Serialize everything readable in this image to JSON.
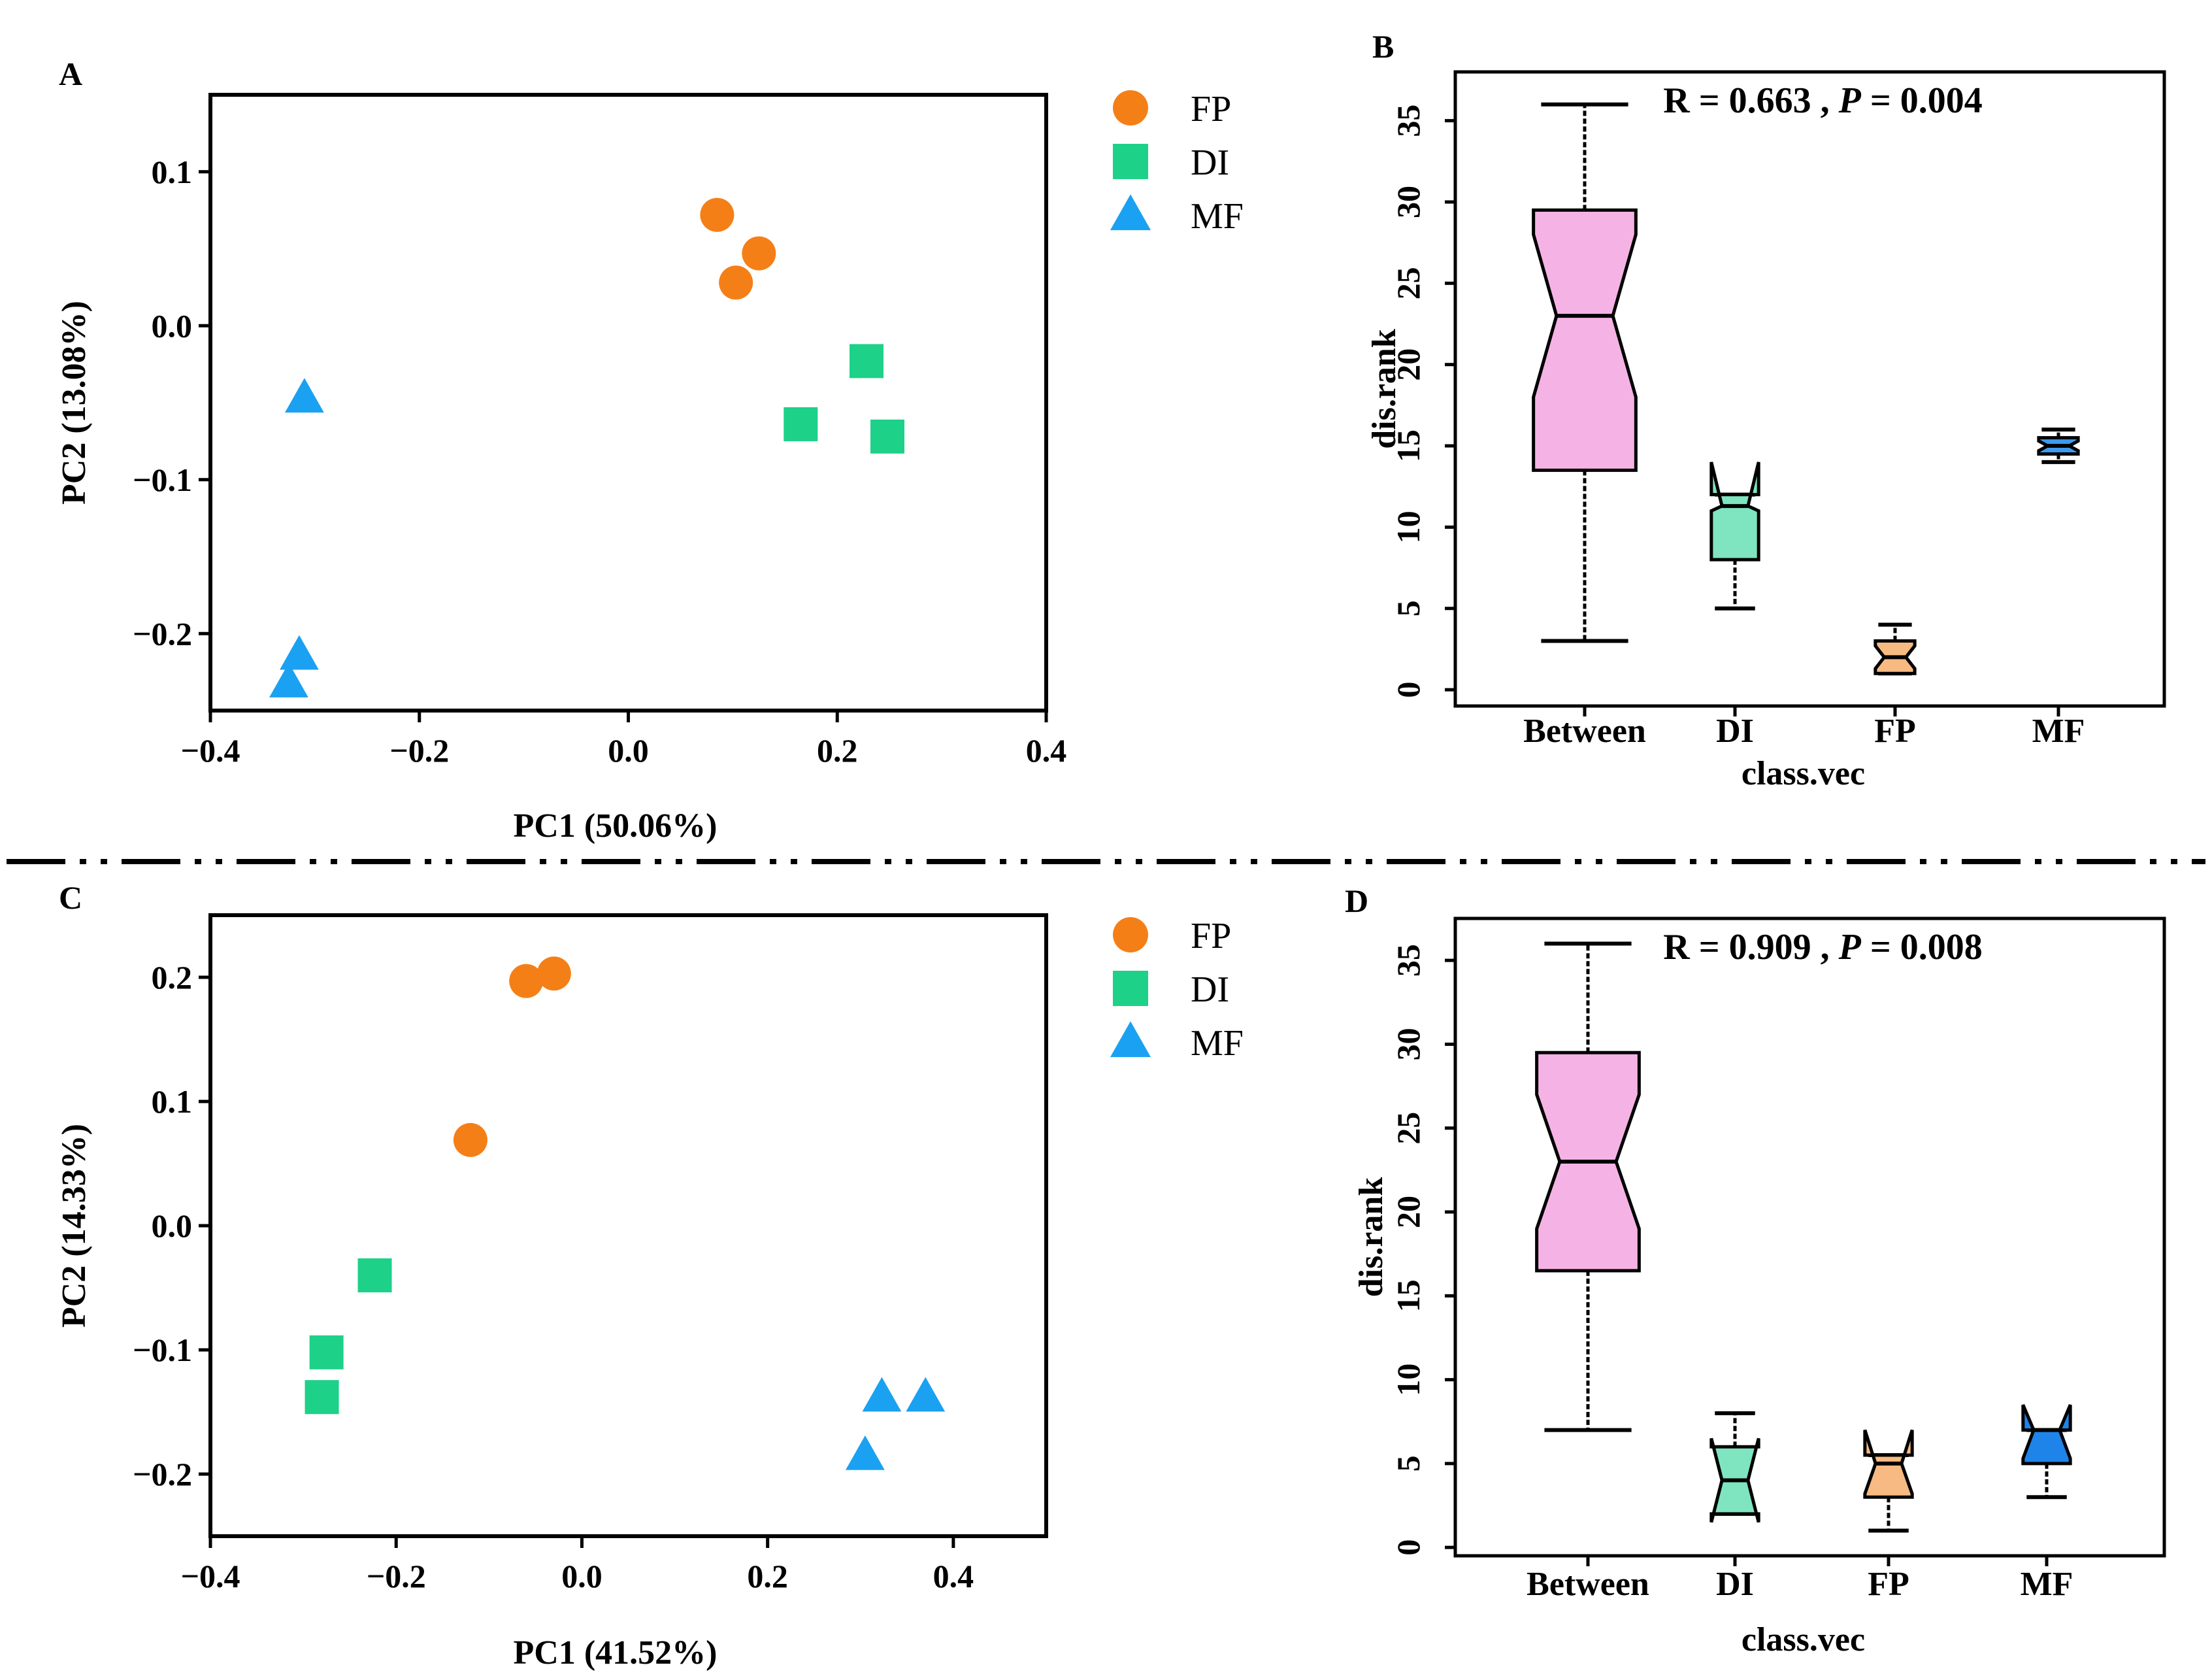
{
  "colors": {
    "FP": "#F57F17",
    "DI": "#1DD188",
    "MF": "#1BA1F2",
    "box_between": "#F5B3E5",
    "box_DI": "#7EE5C0",
    "box_FP": "#F7BA82",
    "box_MF_B": "#3E9AEE",
    "box_MF_D": "#1F84EA"
  },
  "divider": "dash-dot-dot line",
  "chart_data": [
    {
      "panel": "A",
      "type": "scatter",
      "xlabel": "PC1 (50.06%)",
      "ylabel": "PC2  (13.08%)",
      "xlim": [
        -0.4,
        0.4
      ],
      "ylim": [
        -0.25,
        0.15
      ],
      "xticks": [
        -0.4,
        -0.2,
        0.0,
        0.2,
        0.4
      ],
      "xticklabels": [
        "−0.4",
        "−0.2",
        "0.0",
        "0.2",
        "0.4"
      ],
      "yticks": [
        0.1,
        0.0,
        -0.1,
        -0.2
      ],
      "yticklabels": [
        "0.1",
        "0.0",
        "−0.1",
        "−0.2"
      ],
      "legend": [
        {
          "name": "FP",
          "marker": "circle"
        },
        {
          "name": "DI",
          "marker": "square"
        },
        {
          "name": "MF",
          "marker": "triangle"
        }
      ],
      "series": [
        {
          "name": "FP",
          "marker": "circle",
          "points": [
            [
              0.085,
              0.072
            ],
            [
              0.125,
              0.047
            ],
            [
              0.103,
              0.028
            ]
          ]
        },
        {
          "name": "DI",
          "marker": "square",
          "points": [
            [
              0.228,
              -0.023
            ],
            [
              0.165,
              -0.064
            ],
            [
              0.248,
              -0.072
            ]
          ]
        },
        {
          "name": "MF",
          "marker": "triangle",
          "points": [
            [
              -0.31,
              -0.047
            ],
            [
              -0.315,
              -0.214
            ],
            [
              -0.325,
              -0.232
            ]
          ]
        }
      ]
    },
    {
      "panel": "B",
      "type": "box",
      "xlabel": "class.vec",
      "ylabel": "dis.rank",
      "ylim": [
        -1,
        38
      ],
      "yticks": [
        0,
        5,
        10,
        15,
        20,
        25,
        30,
        35
      ],
      "yticklabels": [
        "0",
        "5",
        "10",
        "15",
        "20",
        "25",
        "30",
        "35"
      ],
      "stat": {
        "r_label": "R =",
        "r_value": "0.663",
        "sep": ",",
        "p_label": "P",
        "p_eq": "=",
        "p_value": "0.004"
      },
      "categories": [
        "Between",
        "DI",
        "FP",
        "MF"
      ],
      "boxes": [
        {
          "category": "Between",
          "whisker_low": 3,
          "q1": 13.5,
          "notch_low": 18,
          "median": 23,
          "notch_high": 28,
          "q3": 29.5,
          "whisker_high": 36,
          "color_key": "box_between",
          "width": 0.65
        },
        {
          "category": "DI",
          "whisker_low": 5,
          "q1": 8,
          "notch_low": 11,
          "median": 11.3,
          "notch_high": 14,
          "q3": 12,
          "whisker_high": 12,
          "color_key": "box_DI",
          "width": 0.3
        },
        {
          "category": "FP",
          "whisker_low": 1,
          "q1": 1,
          "notch_low": 1.3,
          "median": 2,
          "notch_high": 2.7,
          "q3": 3,
          "whisker_high": 4,
          "color_key": "box_FP",
          "width": 0.25
        },
        {
          "category": "MF",
          "whisker_low": 14,
          "q1": 14.5,
          "notch_low": 14.7,
          "median": 15,
          "notch_high": 15.3,
          "q3": 15.5,
          "whisker_high": 16,
          "color_key": "box_MF_B",
          "width": 0.25
        }
      ]
    },
    {
      "panel": "C",
      "type": "scatter",
      "xlabel": "PC1 (41.52%)",
      "ylabel": "PC2  (14.33%)",
      "xlim": [
        -0.4,
        0.5
      ],
      "ylim": [
        -0.25,
        0.25
      ],
      "xticks": [
        -0.4,
        -0.2,
        0.0,
        0.2,
        0.4
      ],
      "xticklabels": [
        "−0.4",
        "−0.2",
        "0.0",
        "0.2",
        "0.4"
      ],
      "yticks": [
        0.2,
        0.1,
        0.0,
        -0.1,
        -0.2
      ],
      "yticklabels": [
        "0.2",
        "0.1",
        "0.0",
        "−0.1",
        "−0.2"
      ],
      "legend": [
        {
          "name": "FP",
          "marker": "circle"
        },
        {
          "name": "DI",
          "marker": "square"
        },
        {
          "name": "MF",
          "marker": "triangle"
        }
      ],
      "series": [
        {
          "name": "FP",
          "marker": "circle",
          "points": [
            [
              -0.06,
              0.197
            ],
            [
              -0.03,
              0.203
            ],
            [
              -0.12,
              0.069
            ]
          ]
        },
        {
          "name": "DI",
          "marker": "square",
          "points": [
            [
              -0.223,
              -0.04
            ],
            [
              -0.275,
              -0.102
            ],
            [
              -0.28,
              -0.138
            ]
          ]
        },
        {
          "name": "MF",
          "marker": "triangle",
          "points": [
            [
              0.323,
              -0.138
            ],
            [
              0.37,
              -0.138
            ],
            [
              0.305,
              -0.185
            ]
          ]
        }
      ]
    },
    {
      "panel": "D",
      "type": "box",
      "xlabel": "class.vec",
      "ylabel": "dis.rank",
      "ylim": [
        -0.5,
        37.5
      ],
      "yticks": [
        0,
        5,
        10,
        15,
        20,
        25,
        30,
        35
      ],
      "yticklabels": [
        "0",
        "5",
        "10",
        "15",
        "20",
        "25",
        "30",
        "35"
      ],
      "stat": {
        "r_label": "R =",
        "r_value": "0.909",
        "sep": ",",
        "p_label": "P",
        "p_eq": "=",
        "p_value": "0.008"
      },
      "categories": [
        "Between",
        "DI",
        "FP",
        "MF"
      ],
      "boxes": [
        {
          "category": "Between",
          "whisker_low": 7,
          "q1": 16.5,
          "notch_low": 19,
          "median": 23,
          "notch_high": 27,
          "q3": 29.5,
          "whisker_high": 36,
          "color_key": "box_between",
          "width": 0.65
        },
        {
          "category": "DI",
          "whisker_low": 2,
          "q1": 2,
          "notch_low": 1.5,
          "median": 4,
          "notch_high": 6.5,
          "q3": 6,
          "whisker_high": 8,
          "color_key": "box_DI",
          "width": 0.3
        },
        {
          "category": "FP",
          "whisker_low": 1,
          "q1": 3,
          "notch_low": 3.2,
          "median": 5,
          "notch_high": 7,
          "q3": 5.5,
          "whisker_high": 5.5,
          "color_key": "box_FP",
          "width": 0.3
        },
        {
          "category": "MF",
          "whisker_low": 3,
          "q1": 5,
          "notch_low": 5.3,
          "median": 7,
          "notch_high": 8.5,
          "q3": 7,
          "whisker_high": 7,
          "color_key": "box_MF_D",
          "width": 0.3
        }
      ]
    }
  ]
}
